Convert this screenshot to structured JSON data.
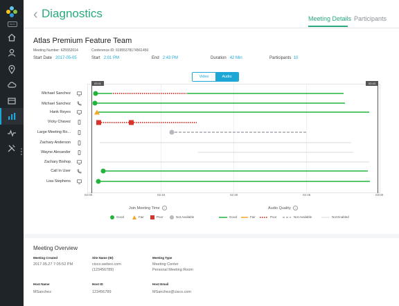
{
  "sidebar": {
    "badge": "BETA"
  },
  "header": {
    "title": "Diagnostics",
    "tabs": [
      {
        "label": "Meeting Details"
      },
      {
        "label": "Participants"
      }
    ]
  },
  "meeting": {
    "team": "Atlas Premium Feature Team",
    "meeting_number": "Meeting Number: 625552014",
    "conference_id": "Conference ID: 91955378174561450",
    "start_date_label": "Start Date",
    "start_date": "2017-05-05",
    "start_label": "Start",
    "start": "2:01 PM",
    "end_label": "End",
    "end": "2:43 PM",
    "duration_label": "Duration",
    "duration": "42 Min",
    "participants_label": "Participants",
    "participants": "10"
  },
  "toggle": {
    "video": "Video",
    "audio": "Audio"
  },
  "timeline": {
    "start_marker": "02:01",
    "end_marker": "02:43",
    "ticks": [
      "02:00",
      "02:15",
      "02:30",
      "02:45",
      "03:00"
    ]
  },
  "participants": [
    {
      "name": "Michael Sanchez",
      "device": "desktop-icon"
    },
    {
      "name": "Michael Sanchez",
      "device": "phone-icon"
    },
    {
      "name": "Hank Reyes",
      "device": "desktop-icon"
    },
    {
      "name": "Vicky Chavez",
      "device": "mobile-icon"
    },
    {
      "name": "Large Meeting Ro...",
      "device": "mobile-icon"
    },
    {
      "name": "Zachary Anderson",
      "device": "mobile-icon"
    },
    {
      "name": "Wayne Alexander",
      "device": "mobile-icon"
    },
    {
      "name": "Zachary Bishop",
      "device": "desktop-icon"
    },
    {
      "name": "Call In User",
      "device": "phone-icon"
    },
    {
      "name": "Lisa Stephens",
      "device": "desktop-icon"
    }
  ],
  "legend": {
    "join_title": "Join Meeting Time",
    "join_items": [
      "Good",
      "Fair",
      "Poor",
      "Not Available"
    ],
    "audio_title": "Audio Quality",
    "audio_items": [
      "Good",
      "Fair",
      "Poor",
      "Not Available",
      "Not Enabled"
    ]
  },
  "colors": {
    "good": "#21b33c",
    "fair": "#f5a623",
    "poor": "#d9342b",
    "na": "#b5b8bc",
    "accent": "#28a97f"
  },
  "overview": {
    "title": "Meeting Overview",
    "created_label": "Meeting Created",
    "created": "2017.05.27 7:05:52 PM",
    "site_label": "Site Name (ID)",
    "site_line1": "cisco.webex.com",
    "site_line2": "(123456789)",
    "type_label": "Meeting Type",
    "type_line1": "Meeting Center",
    "type_line2": "Personal Meeting Room",
    "host_name_label": "Host Name",
    "host_name": "MSanchez",
    "host_id_label": "Host ID",
    "host_id": "123456789",
    "host_email_label": "Host Email",
    "host_email": "MSanchez@cisco.com"
  }
}
